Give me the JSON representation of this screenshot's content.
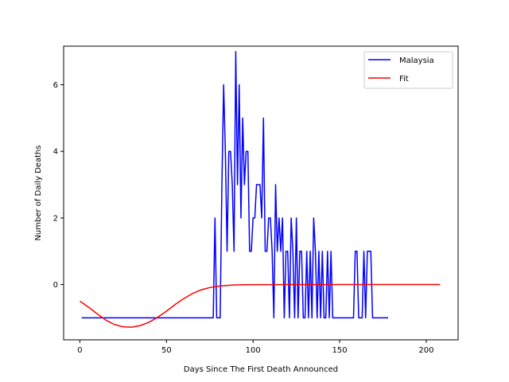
{
  "chart_data": {
    "type": "line",
    "title": "",
    "xlabel": "Days Since The First Death Announced",
    "ylabel": "Number of Daily Deaths",
    "xlim": [
      -9.4,
      218.4
    ],
    "ylim": [
      -1.66,
      7.16
    ],
    "xticks": [
      0,
      50,
      100,
      150,
      200
    ],
    "yticks": [
      0,
      2,
      4,
      6
    ],
    "grid": false,
    "legend_position": "top-right",
    "series": [
      {
        "name": "Malaysia",
        "color": "#0000ff",
        "x": [
          1,
          65,
          77,
          78,
          79,
          80,
          81,
          82,
          83,
          84,
          85,
          86,
          87,
          88,
          89,
          90,
          91,
          92,
          93,
          94,
          95,
          96,
          97,
          98,
          99,
          100,
          101,
          102,
          103,
          104,
          105,
          106,
          107,
          108,
          109,
          110,
          111,
          112,
          113,
          114,
          115,
          116,
          117,
          118,
          119,
          120,
          121,
          122,
          123,
          124,
          125,
          126,
          127,
          128,
          129,
          130,
          131,
          132,
          133,
          134,
          135,
          136,
          137,
          138,
          139,
          140,
          141,
          142,
          143,
          144,
          145,
          146,
          147,
          148,
          149,
          150,
          151,
          152,
          153,
          154,
          155,
          156,
          157,
          158,
          159,
          160,
          161,
          162,
          163,
          164,
          165,
          166,
          167,
          168,
          169,
          170,
          171,
          172,
          173,
          174,
          175,
          176,
          177,
          178
        ],
        "y": [
          -1,
          -1,
          -1,
          2,
          -1,
          -1,
          -1,
          3,
          6,
          4,
          1,
          4,
          4,
          3,
          1,
          7,
          3,
          6,
          2,
          5,
          3,
          4,
          4,
          1,
          1,
          2,
          2,
          3,
          3,
          3,
          2,
          5,
          1,
          1,
          2,
          2,
          1,
          -1,
          3,
          1,
          2,
          1,
          2,
          -1,
          1,
          1,
          -1,
          2,
          1,
          -1,
          2,
          -1,
          1,
          1,
          -1,
          -1,
          1,
          -1,
          1,
          -1,
          2,
          1,
          -1,
          1,
          -1,
          1,
          -1,
          -1,
          1,
          -1,
          1,
          -1,
          -1,
          -1,
          -1,
          -1,
          -1,
          -1,
          -1,
          -1,
          -1,
          -1,
          -1,
          -1,
          1,
          1,
          -1,
          -1,
          -1,
          1,
          -1,
          1,
          1,
          1,
          -1,
          -1,
          -1,
          -1,
          -1,
          -1,
          -1,
          -1,
          -1,
          -1
        ]
      },
      {
        "name": "Fit",
        "color": "#ff0000",
        "x": [
          0,
          5,
          10,
          15,
          20,
          25,
          30,
          35,
          40,
          45,
          50,
          55,
          60,
          65,
          70,
          75,
          80,
          85,
          90,
          95,
          100,
          110,
          120,
          140,
          160,
          180,
          200,
          208
        ],
        "y": [
          -0.5,
          -0.68,
          -0.88,
          -1.07,
          -1.2,
          -1.27,
          -1.28,
          -1.23,
          -1.13,
          -0.98,
          -0.8,
          -0.6,
          -0.42,
          -0.27,
          -0.16,
          -0.09,
          -0.05,
          -0.025,
          -0.012,
          -0.006,
          -0.003,
          -0.001,
          0,
          0,
          0,
          0,
          0,
          0
        ]
      }
    ]
  }
}
